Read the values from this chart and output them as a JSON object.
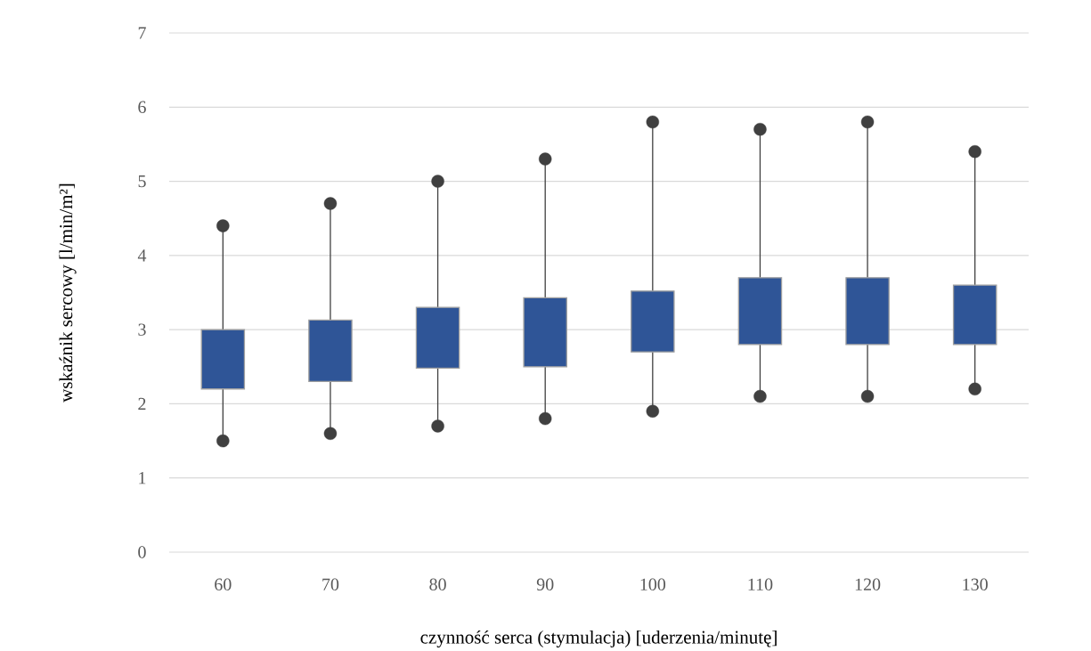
{
  "chart_data": {
    "type": "box",
    "xlabel": "czynność serca (stymulacja) [uderzenia/minutę]",
    "ylabel": "wskaźnik sercowy [l/min/m²]",
    "categories": [
      "60",
      "70",
      "80",
      "90",
      "100",
      "110",
      "120",
      "130"
    ],
    "boxes": [
      {
        "low": 1.5,
        "q1": 2.2,
        "q3": 3.0,
        "high": 4.4,
        "outliers": [
          1.5,
          4.4
        ]
      },
      {
        "low": 1.6,
        "q1": 2.3,
        "q3": 3.13,
        "high": 4.7,
        "outliers": [
          1.6,
          4.7
        ]
      },
      {
        "low": 1.7,
        "q1": 2.48,
        "q3": 3.3,
        "high": 5.0,
        "outliers": [
          1.7,
          5.0
        ]
      },
      {
        "low": 1.8,
        "q1": 2.5,
        "q3": 3.43,
        "high": 5.3,
        "outliers": [
          1.8,
          5.3
        ]
      },
      {
        "low": 1.9,
        "q1": 2.7,
        "q3": 3.52,
        "high": 5.8,
        "outliers": [
          1.9,
          5.8
        ]
      },
      {
        "low": 2.1,
        "q1": 2.8,
        "q3": 3.7,
        "high": 5.7,
        "outliers": [
          2.1,
          5.7
        ]
      },
      {
        "low": 2.1,
        "q1": 2.8,
        "q3": 3.7,
        "high": 5.8,
        "outliers": [
          2.1,
          5.8
        ]
      },
      {
        "low": 2.2,
        "q1": 2.8,
        "q3": 3.6,
        "high": 5.4,
        "outliers": [
          2.2,
          5.4
        ]
      }
    ],
    "color": "#2f5597",
    "ylim": [
      0,
      7
    ],
    "yticks": [
      0,
      1,
      2,
      3,
      4,
      5,
      6,
      7
    ],
    "grid": "y"
  }
}
